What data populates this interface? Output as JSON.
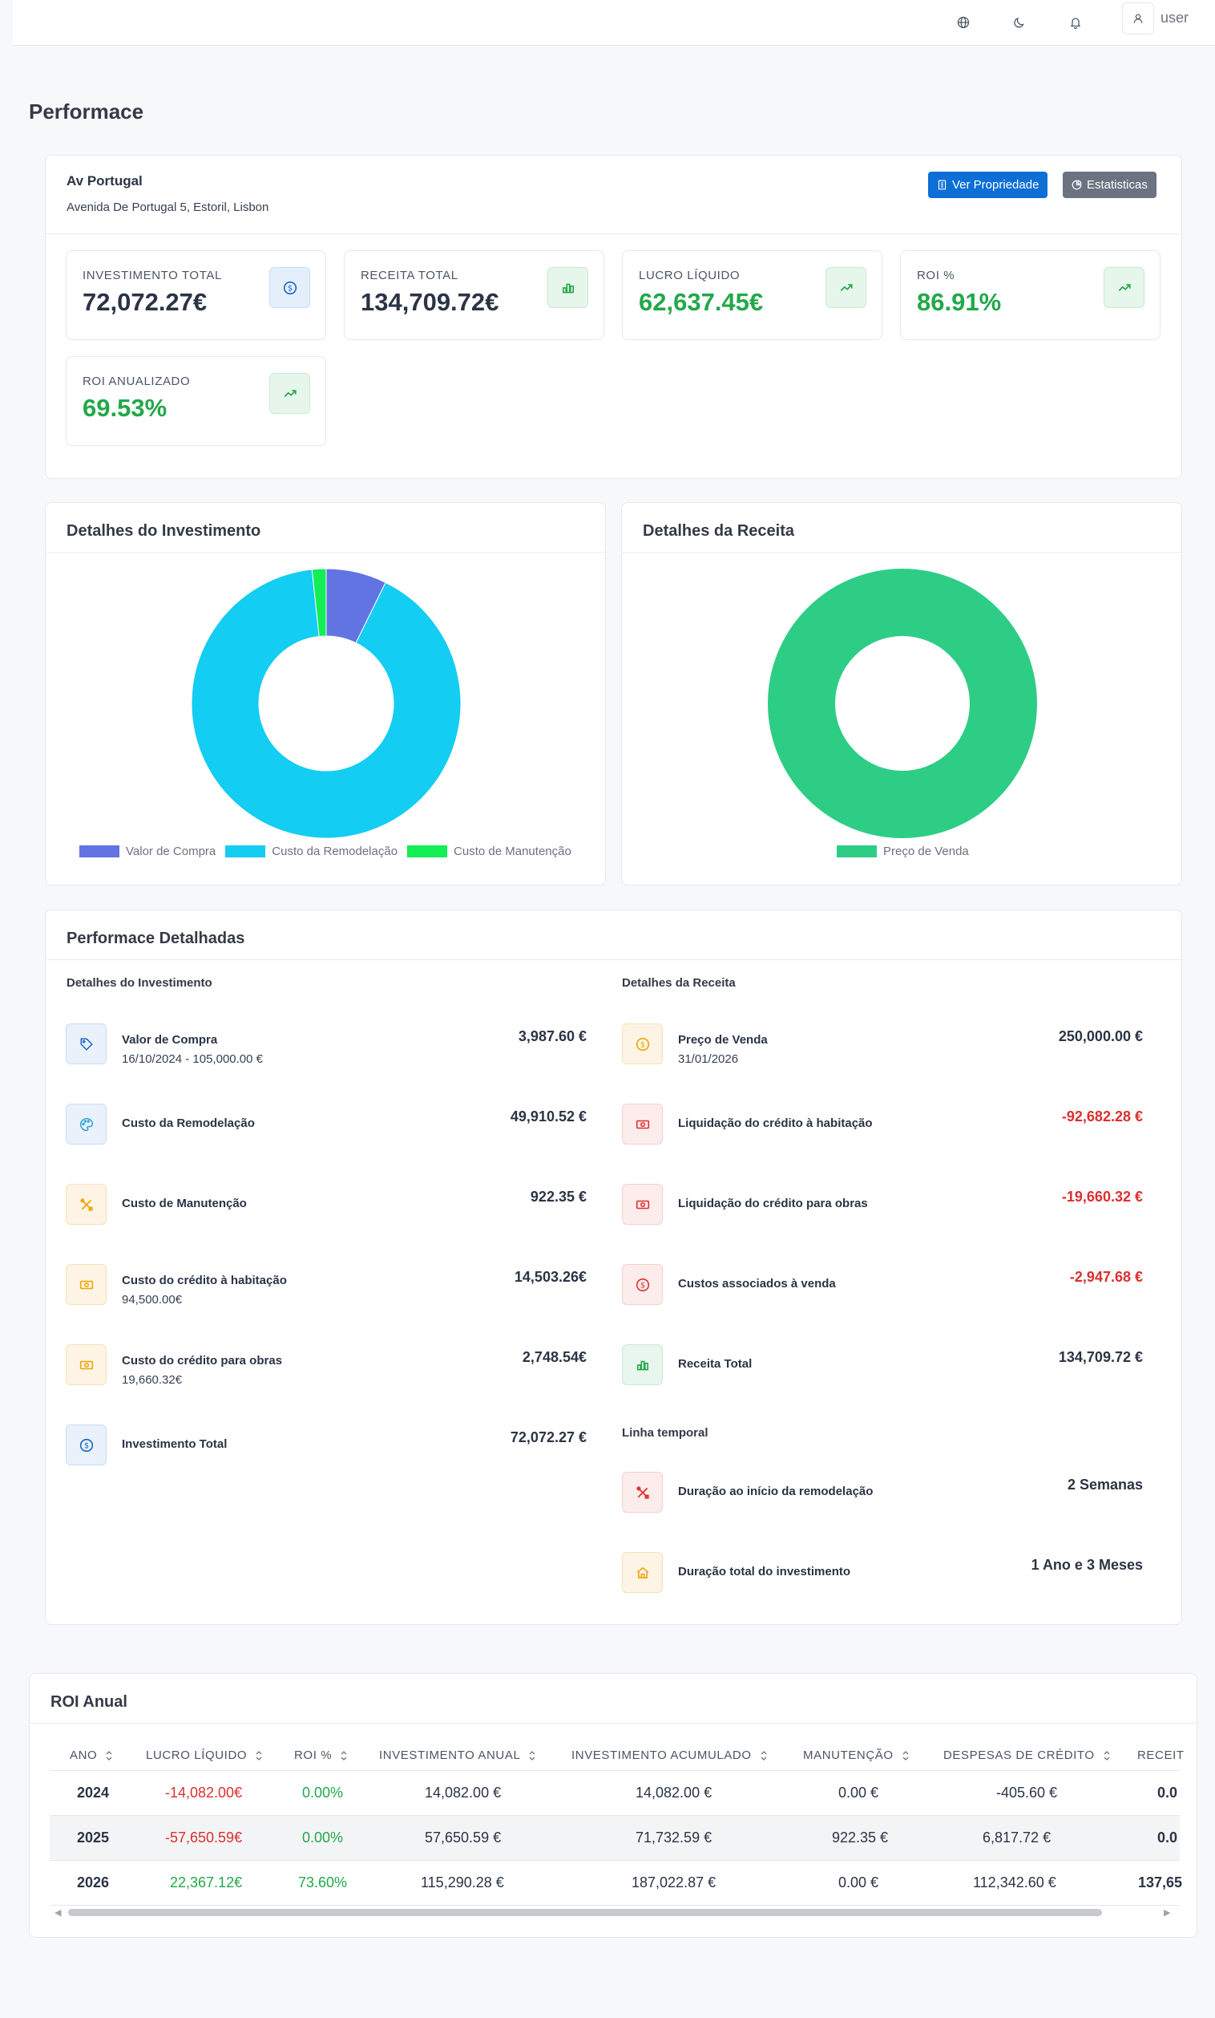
{
  "header": {
    "user": "user"
  },
  "page": {
    "title": "Performace"
  },
  "property": {
    "name": "Av Portugal",
    "address": "Avenida De Portugal 5, Estoril, Lisbon",
    "view_button": "Ver Propriedade",
    "stats_button": "Estatisticas"
  },
  "stats": [
    {
      "label": "INVESTIMENTO TOTAL",
      "value": "72,072.27€"
    },
    {
      "label": "RECEITA TOTAL",
      "value": "134,709.72€"
    },
    {
      "label": "LUCRO LÍQUIDO",
      "value": "62,637.45€"
    },
    {
      "label": "ROI %",
      "value": "86.91%"
    },
    {
      "label": "ROI ANUALIZADO",
      "value": "69.53%"
    }
  ],
  "colors": {
    "compra": "#6174e2",
    "remodelacao": "#13cdf2",
    "manutencao": "#12ee54",
    "venda": "#2ecd86"
  },
  "chart_data": [
    {
      "type": "pie",
      "title": "Detalhes do Investimento",
      "categories": [
        "Valor de Compra",
        "Custo da Remodelação",
        "Custo de Manutenção"
      ],
      "values": [
        3987.6,
        49910.52,
        922.35
      ]
    },
    {
      "type": "pie",
      "title": "Detalhes da Receita",
      "categories": [
        "Preço de Venda"
      ],
      "values": [
        250000.0
      ]
    }
  ],
  "detailed": {
    "title": "Performace Detalhadas",
    "investment_header": "Detalhes do Investimento",
    "revenue_header": "Detalhes da Receita",
    "timeline_header": "Linha temporal",
    "investment": [
      {
        "label": "Valor de Compra",
        "sub": "16/10/2024 - 105,000.00 €",
        "value": "3,987.60 €"
      },
      {
        "label": "Custo da Remodelação",
        "sub": "",
        "value": "49,910.52 €"
      },
      {
        "label": "Custo de Manutenção",
        "sub": "",
        "value": "922.35 €"
      },
      {
        "label": "Custo do crédito à habitação",
        "sub": "94,500.00€",
        "value": "14,503.26€"
      },
      {
        "label": "Custo do crédito para obras",
        "sub": "19,660.32€",
        "value": "2,748.54€"
      },
      {
        "label": "Investimento Total",
        "sub": "",
        "value": "72,072.27 €"
      }
    ],
    "revenue": [
      {
        "label": "Preço de Venda",
        "sub": "31/01/2026",
        "value": "250,000.00 €"
      },
      {
        "label": "Liquidação do crédito à habitação",
        "sub": "",
        "value": "-92,682.28 €"
      },
      {
        "label": "Liquidação do crédito para obras",
        "sub": "",
        "value": "-19,660.32 €"
      },
      {
        "label": "Custos associados à venda",
        "sub": "",
        "value": "-2,947.68 €"
      },
      {
        "label": "Receita Total",
        "sub": "",
        "value": "134,709.72 €"
      }
    ],
    "timeline": [
      {
        "label": "Duração ao início da remodelação",
        "value": "2 Semanas"
      },
      {
        "label": "Duração total do investimento",
        "value": "1 Ano e 3 Meses"
      }
    ]
  },
  "roi": {
    "title": "ROI Anual",
    "columns": [
      "ANO",
      "LUCRO LÍQUIDO",
      "ROI %",
      "INVESTIMENTO ANUAL",
      "INVESTIMENTO ACUMULADO",
      "MANUTENÇÃO",
      "DESPESAS DE CRÉDITO",
      "RECEIT"
    ],
    "rows": [
      {
        "ano": "2024",
        "lucro": "-14,082.00€",
        "roi": "0.00%",
        "anual": "14,082.00 €",
        "acum": "14,082.00 €",
        "manut": "0.00 €",
        "credito": "-405.60 €",
        "receita": "0.0"
      },
      {
        "ano": "2025",
        "lucro": "-57,650.59€",
        "roi": "0.00%",
        "anual": "57,650.59 €",
        "acum": "71,732.59 €",
        "manut": "922.35 €",
        "credito": "6,817.72 €",
        "receita": "0.0"
      },
      {
        "ano": "2026",
        "lucro": "22,367.12€",
        "roi": "73.60%",
        "anual": "115,290.28 €",
        "acum": "187,022.87 €",
        "manut": "0.00 €",
        "credito": "112,342.60 €",
        "receita": "137,65"
      }
    ]
  }
}
